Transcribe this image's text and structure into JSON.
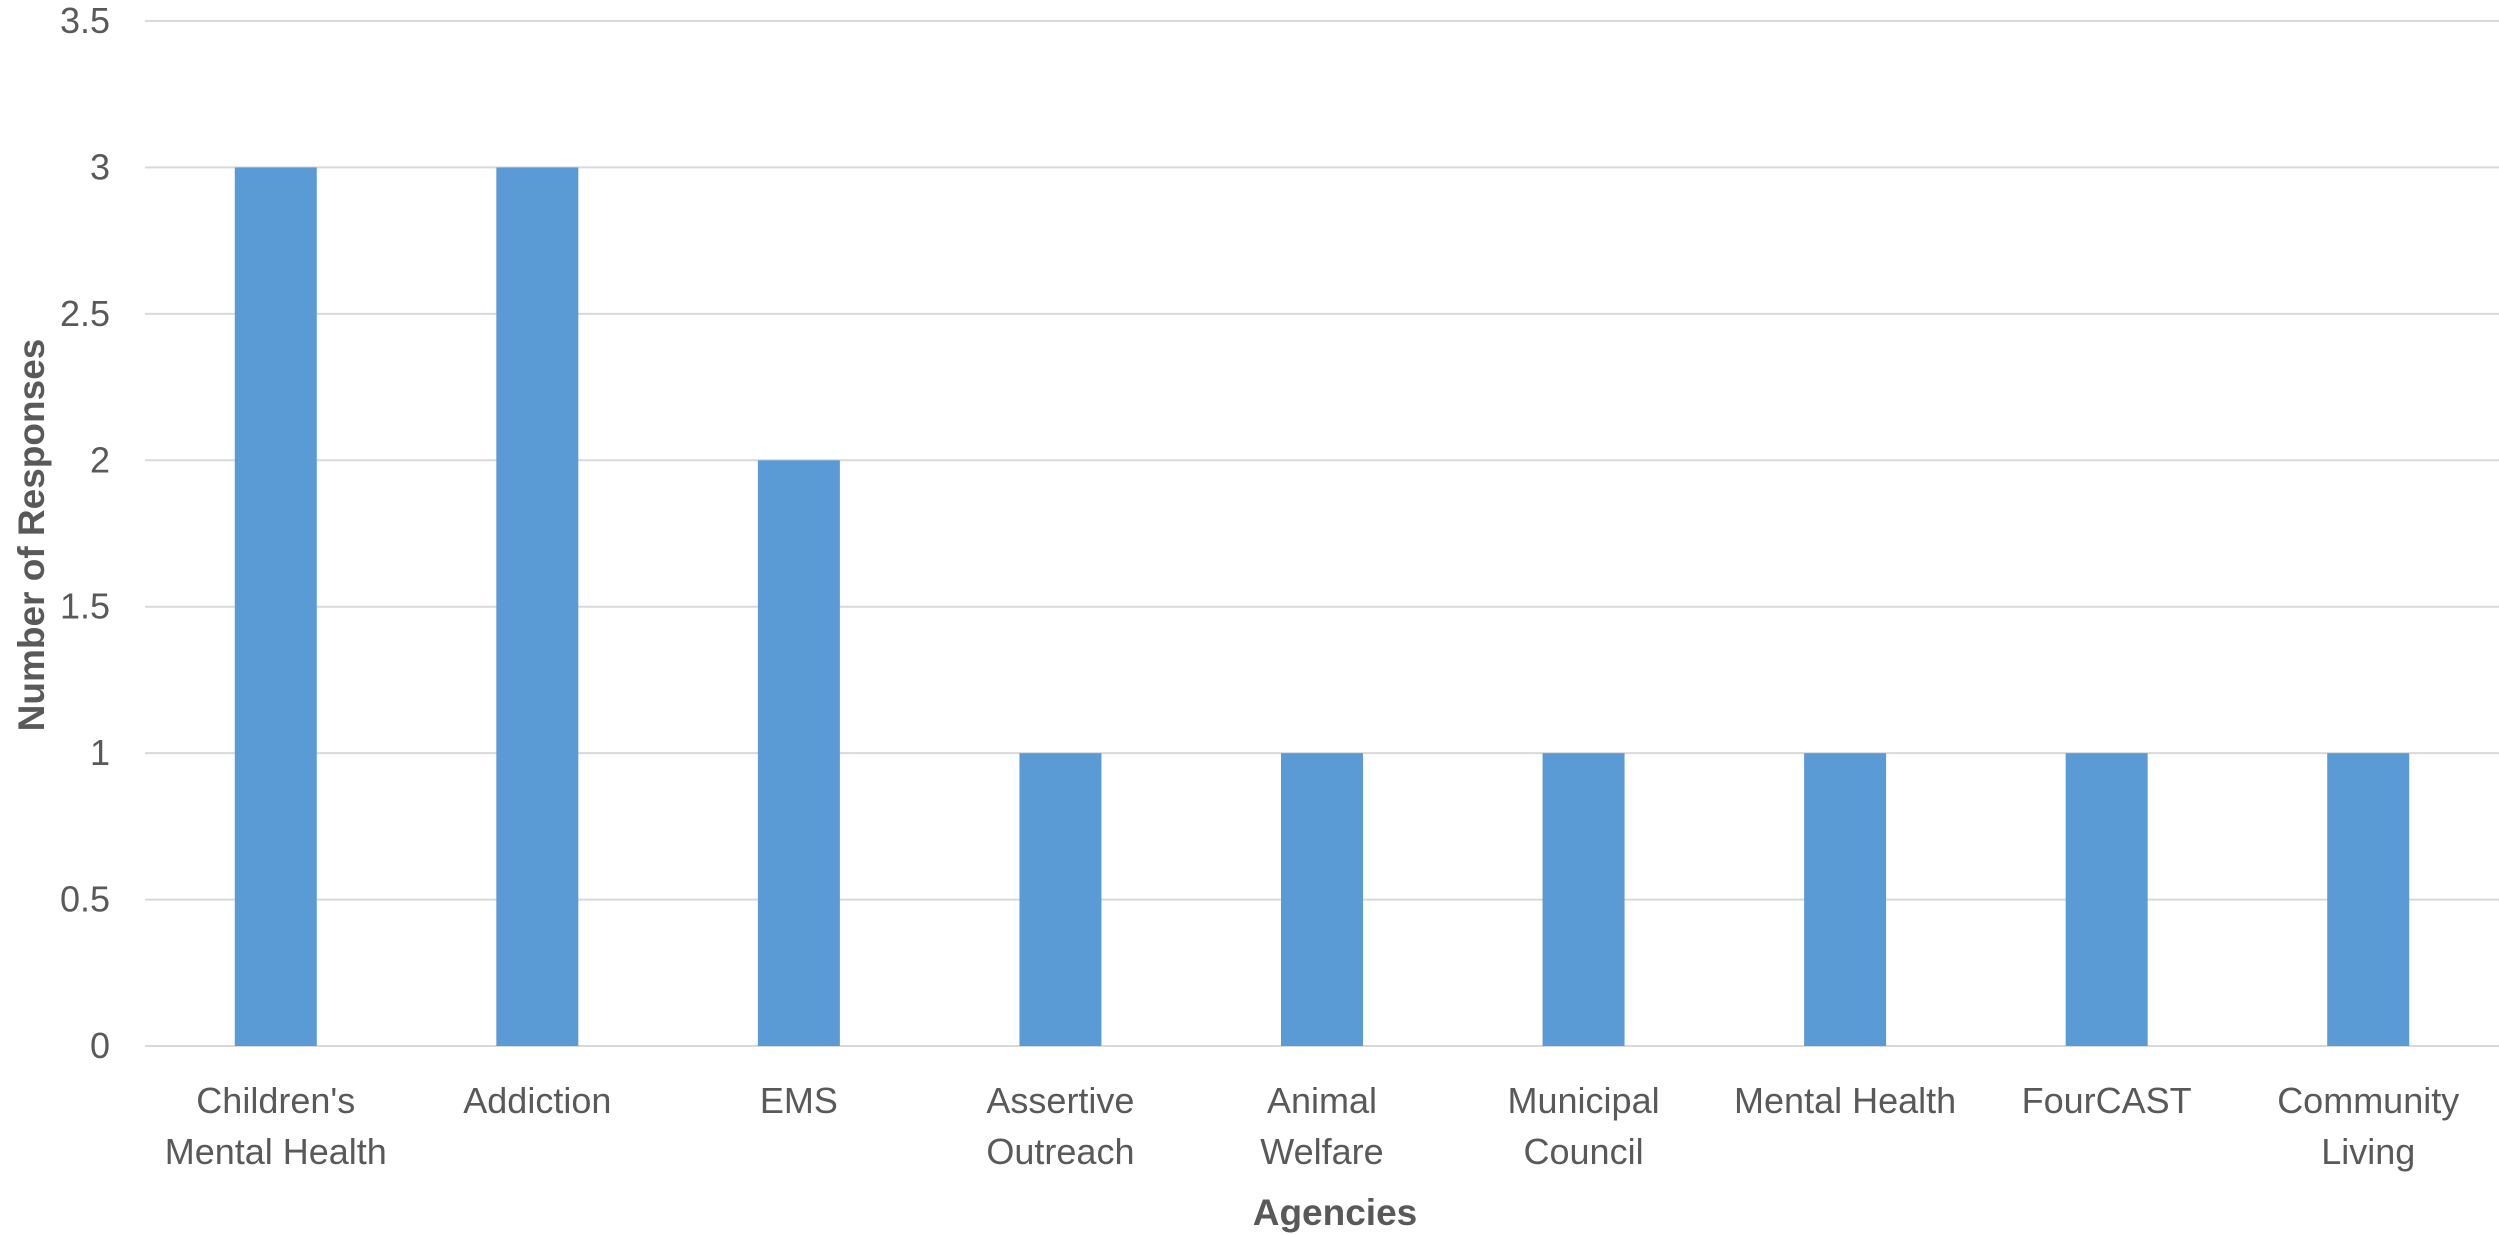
{
  "chart_data": {
    "type": "bar",
    "categories": [
      [
        "Children's",
        "Mental Health"
      ],
      [
        "Addiction"
      ],
      [
        "EMS"
      ],
      [
        "Assertive",
        "Outreach"
      ],
      [
        "Animal",
        "Welfare"
      ],
      [
        "Municipal",
        "Council"
      ],
      [
        "Mental Health"
      ],
      [
        "FourCAST"
      ],
      [
        "Community",
        "Living"
      ]
    ],
    "values": [
      3,
      3,
      2,
      1,
      1,
      1,
      1,
      1,
      1
    ],
    "title": "",
    "xlabel": "Agencies",
    "ylabel": "Number of Responses",
    "ylim": [
      0,
      3.5
    ],
    "yticks": [
      "0",
      "0.5",
      "1",
      "1.5",
      "2",
      "2.5",
      "3",
      "3.5"
    ],
    "grid": true,
    "bar_color": "#5b9bd5",
    "grid_color": "#d9d9d9",
    "text_color": "#595959"
  }
}
